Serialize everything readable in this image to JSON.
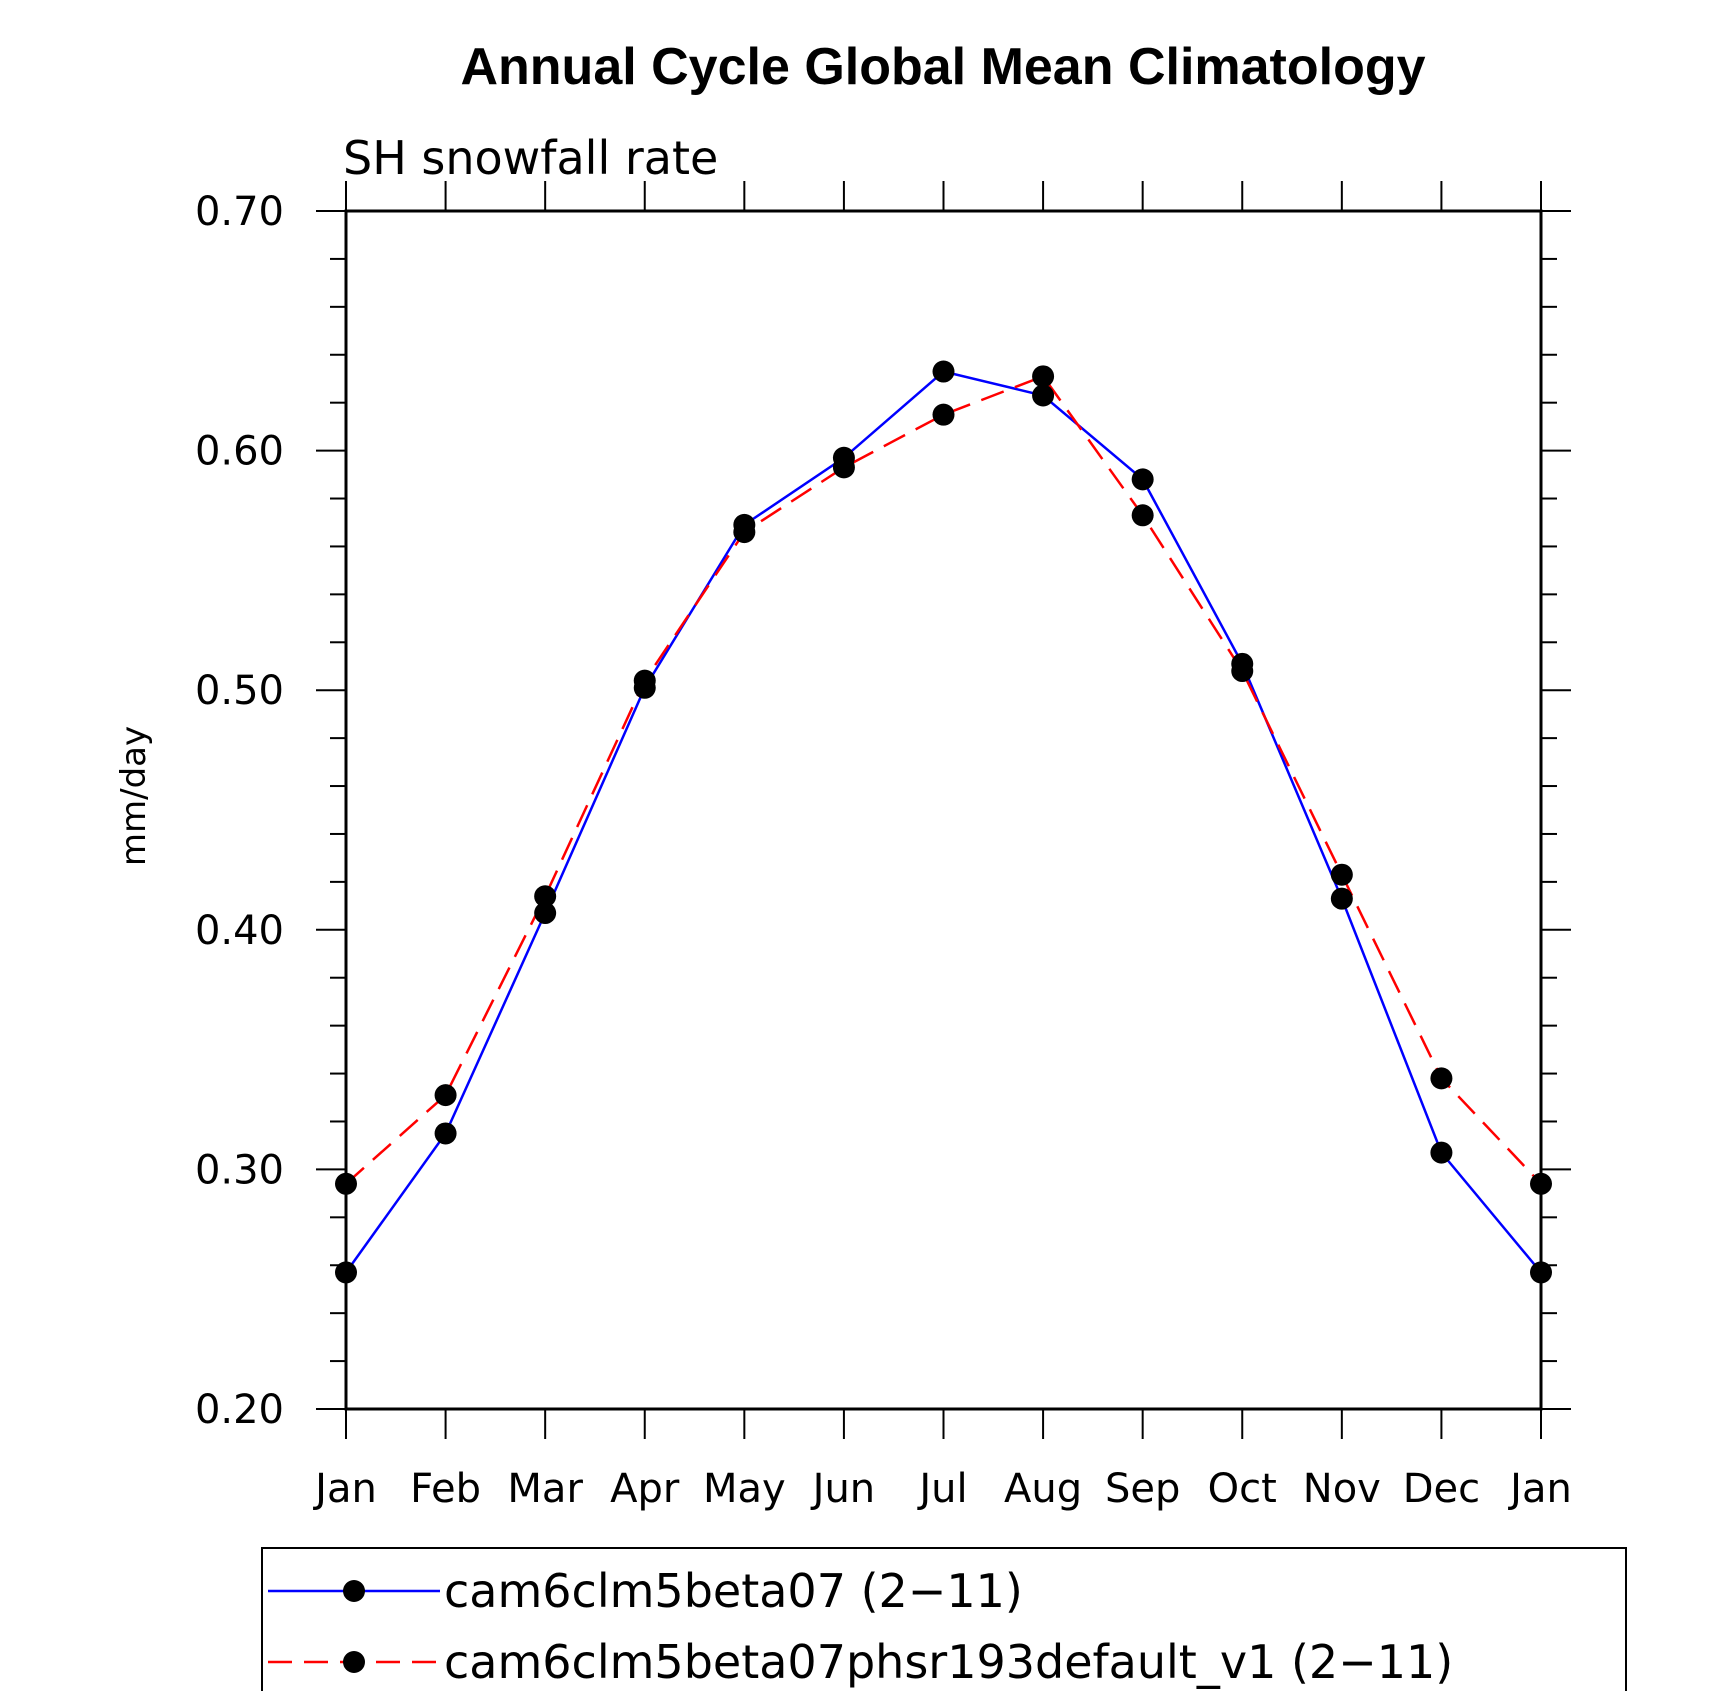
{
  "chart_data": {
    "type": "line",
    "title": "Annual Cycle Global Mean Climatology",
    "subtitle": "SH snowfall rate",
    "xlabel": "",
    "ylabel": "mm/day",
    "ylim": [
      0.2,
      0.7
    ],
    "yticks": [
      "0.20",
      "0.30",
      "0.40",
      "0.50",
      "0.60",
      "0.70"
    ],
    "categories": [
      "Jan",
      "Feb",
      "Mar",
      "Apr",
      "May",
      "Jun",
      "Jul",
      "Aug",
      "Sep",
      "Oct",
      "Nov",
      "Dec",
      "Jan"
    ],
    "grid": false,
    "legend_position": "bottom",
    "series": [
      {
        "name": "cam6clm5beta07 (2−11)",
        "color": "#0000ff",
        "dash": "solid",
        "marker": "filled-circle",
        "values": [
          0.257,
          0.315,
          0.407,
          0.501,
          0.569,
          0.597,
          0.633,
          0.623,
          0.588,
          0.511,
          0.413,
          0.307,
          0.257
        ]
      },
      {
        "name": "cam6clm5beta07phsr193default_v1 (2−11)",
        "color": "#ff0000",
        "dash": "dashed",
        "marker": "filled-circle",
        "values": [
          0.294,
          0.331,
          0.414,
          0.504,
          0.566,
          0.593,
          0.615,
          0.631,
          0.573,
          0.508,
          0.423,
          0.338,
          0.294
        ]
      }
    ]
  }
}
